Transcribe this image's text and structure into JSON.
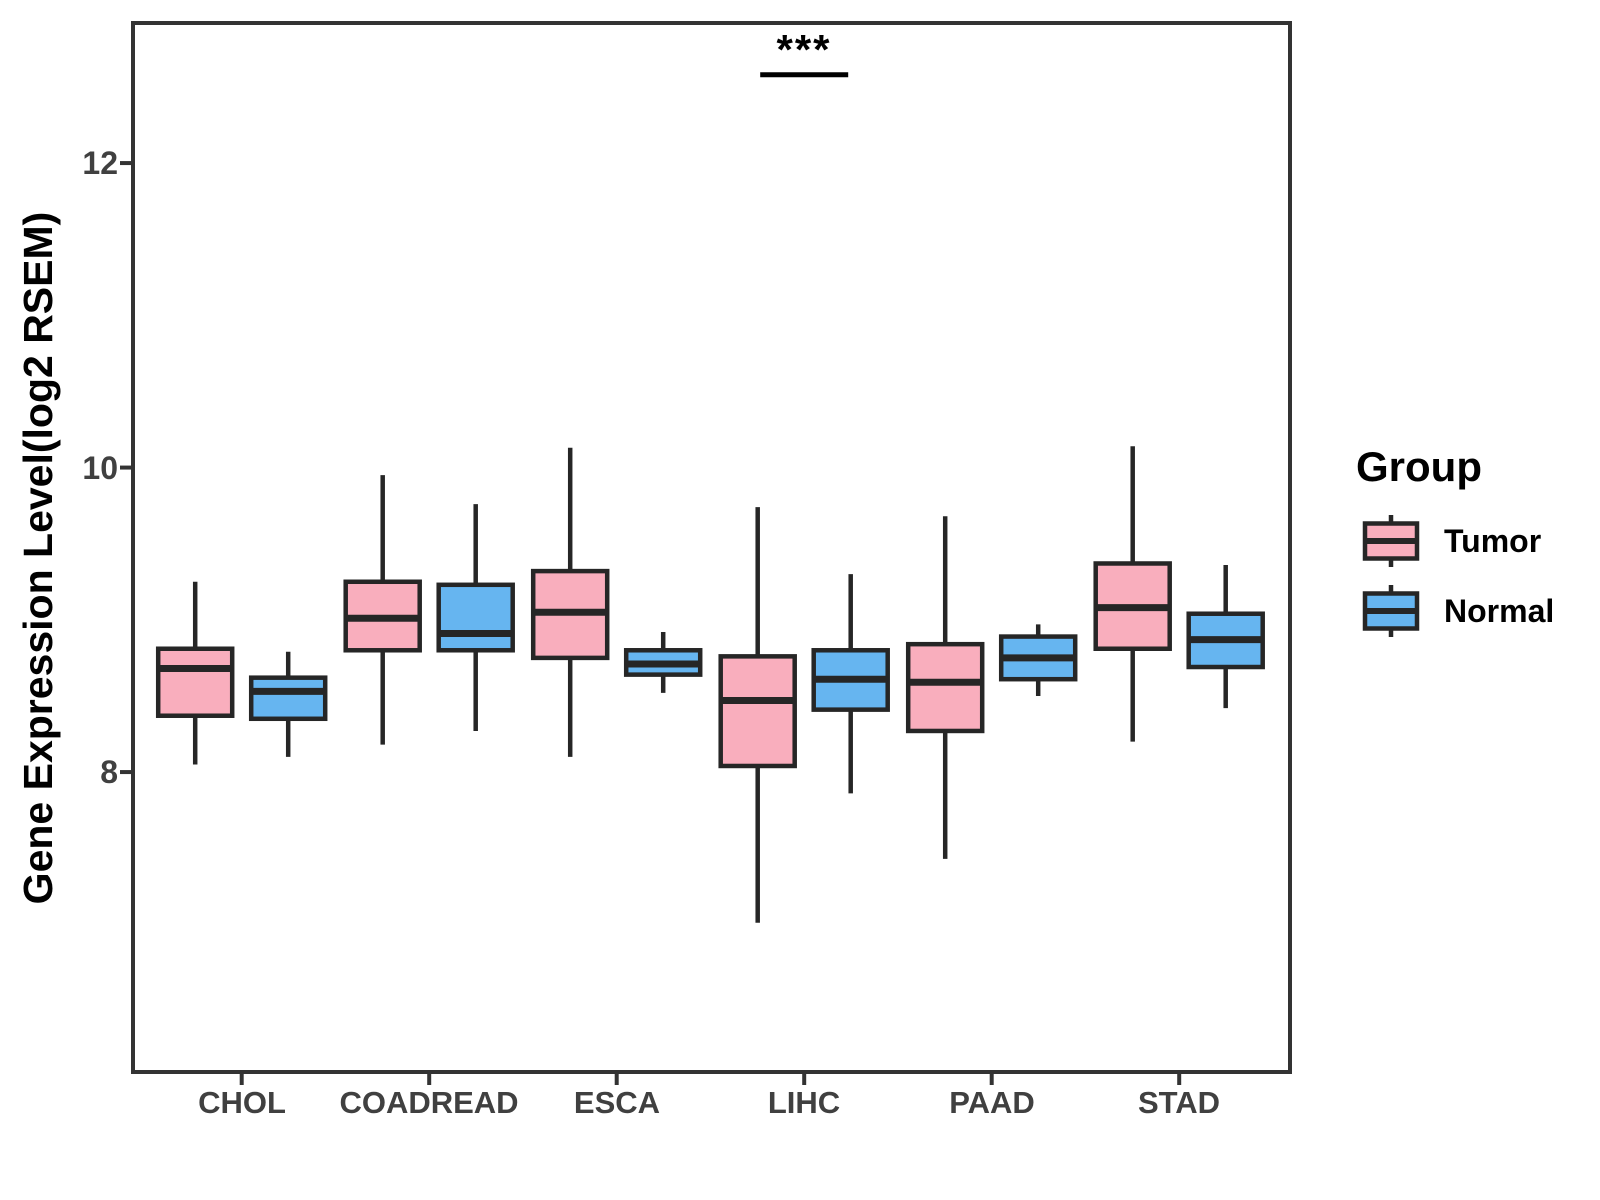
{
  "chart_data": {
    "type": "boxplot",
    "ylabel": "Gene Expression Level(log2 RSEM)",
    "categories": [
      "CHOL",
      "COADREAD",
      "ESCA",
      "LIHC",
      "PAAD",
      "STAD"
    ],
    "yticks": [
      "8",
      "10",
      "12"
    ],
    "ytick_values": [
      8,
      10,
      12
    ],
    "ylim": [
      6.03,
      12.92
    ],
    "grid": false,
    "panel_border": true,
    "colors": {
      "tumor_fill": "#F9AEBD",
      "normal_fill": "#66B5F0",
      "box_stroke": "#262626",
      "panel_stroke": "#333333",
      "tick_label": "#404040"
    },
    "legend": {
      "title": "Group",
      "position": "right",
      "entries": [
        {
          "label": "Tumor",
          "color": "#F9AEBD"
        },
        {
          "label": "Normal",
          "color": "#66B5F0"
        }
      ]
    },
    "series": [
      {
        "name": "Tumor",
        "color": "#F9AEBD",
        "boxes": [
          {
            "category": "CHOL",
            "whisker_low": 8.05,
            "q1": 8.37,
            "median": 8.68,
            "q3": 8.81,
            "whisker_high": 9.25
          },
          {
            "category": "COADREAD",
            "whisker_low": 8.18,
            "q1": 8.8,
            "median": 9.01,
            "q3": 9.25,
            "whisker_high": 9.95
          },
          {
            "category": "ESCA",
            "whisker_low": 8.1,
            "q1": 8.75,
            "median": 9.05,
            "q3": 9.32,
            "whisker_high": 10.13
          },
          {
            "category": "LIHC",
            "whisker_low": 7.01,
            "q1": 8.04,
            "median": 8.47,
            "q3": 8.76,
            "whisker_high": 9.74
          },
          {
            "category": "PAAD",
            "whisker_low": 7.43,
            "q1": 8.27,
            "median": 8.59,
            "q3": 8.84,
            "whisker_high": 9.68
          },
          {
            "category": "STAD",
            "whisker_low": 8.2,
            "q1": 8.81,
            "median": 9.08,
            "q3": 9.37,
            "whisker_high": 10.14
          }
        ]
      },
      {
        "name": "Normal",
        "color": "#66B5F0",
        "boxes": [
          {
            "category": "CHOL",
            "whisker_low": 8.1,
            "q1": 8.35,
            "median": 8.53,
            "q3": 8.62,
            "whisker_high": 8.79
          },
          {
            "category": "COADREAD",
            "whisker_low": 8.27,
            "q1": 8.8,
            "median": 8.91,
            "q3": 9.23,
            "whisker_high": 9.76
          },
          {
            "category": "ESCA",
            "whisker_low": 8.52,
            "q1": 8.64,
            "median": 8.71,
            "q3": 8.8,
            "whisker_high": 8.92
          },
          {
            "category": "LIHC",
            "whisker_low": 7.86,
            "q1": 8.41,
            "median": 8.61,
            "q3": 8.8,
            "whisker_high": 9.3
          },
          {
            "category": "PAAD",
            "whisker_low": 8.5,
            "q1": 8.61,
            "median": 8.75,
            "q3": 8.89,
            "whisker_high": 8.97
          },
          {
            "category": "STAD",
            "whisker_low": 8.42,
            "q1": 8.69,
            "median": 8.87,
            "q3": 9.04,
            "whisker_high": 9.36
          }
        ]
      }
    ],
    "annotation": {
      "label": "***",
      "category": "LIHC",
      "bar_y": 12.58
    }
  }
}
